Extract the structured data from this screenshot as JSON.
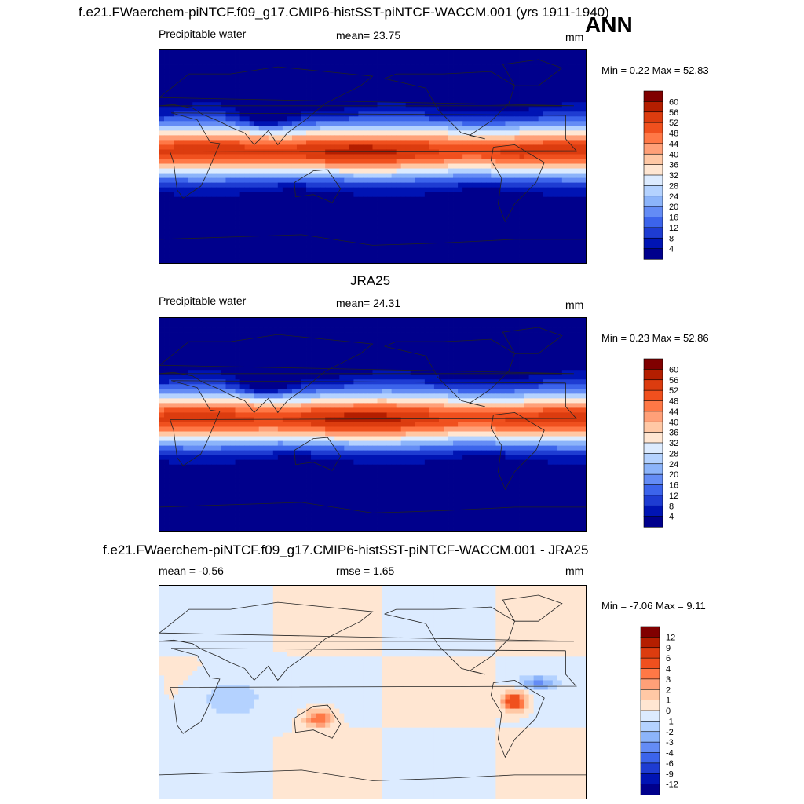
{
  "header": {
    "main_title": "f.e21.FWaerchem-piNTCF.f09_g17.CMIP6-histSST-piNTCF-WACCM.001 (yrs 1911-1940)",
    "season": "ANN"
  },
  "colors": {
    "diverging": [
      "#00008b",
      "#0019b4",
      "#1e46e6",
      "#3c6ef0",
      "#6496f0",
      "#96bef5",
      "#c8dcfa",
      "#ffe6d2",
      "#ffc8a5",
      "#ffa073",
      "#ff7846",
      "#f05020",
      "#d22d0a",
      "#a01000",
      "#800000"
    ],
    "coast": "#222222"
  },
  "panels": [
    {
      "id": "model",
      "subtitle": "",
      "left_label": "Precipitable water",
      "center_label": "mean=  23.75",
      "right_label": "mm",
      "minmax": "Min =   0.22 Max =  52.83",
      "colorbar": {
        "ticks": [
          "60",
          "56",
          "52",
          "48",
          "44",
          "40",
          "36",
          "32",
          "28",
          "24",
          "20",
          "16",
          "12",
          "8",
          "4"
        ],
        "colors": [
          "#800000",
          "#b41e00",
          "#dc3c0f",
          "#f0501e",
          "#ff7846",
          "#ffa078",
          "#ffc8a5",
          "#ffe6d2",
          "#dcebff",
          "#b4d2ff",
          "#8cb4fa",
          "#648cf5",
          "#3c64eb",
          "#1e3cd2",
          "#0014b4",
          "#00008c"
        ]
      }
    },
    {
      "id": "obs",
      "subtitle": "JRA25",
      "left_label": "Precipitable water",
      "center_label": "mean=  24.31",
      "right_label": "mm",
      "minmax": "Min =   0.23 Max =  52.86",
      "colorbar": {
        "ticks": [
          "60",
          "56",
          "52",
          "48",
          "44",
          "40",
          "36",
          "32",
          "28",
          "24",
          "20",
          "16",
          "12",
          "8",
          "4"
        ],
        "colors": [
          "#800000",
          "#b41e00",
          "#dc3c0f",
          "#f0501e",
          "#ff7846",
          "#ffa078",
          "#ffc8a5",
          "#ffe6d2",
          "#dcebff",
          "#b4d2ff",
          "#8cb4fa",
          "#648cf5",
          "#3c64eb",
          "#1e3cd2",
          "#0014b4",
          "#00008c"
        ]
      }
    },
    {
      "id": "diff",
      "subtitle": "f.e21.FWaerchem-piNTCF.f09_g17.CMIP6-histSST-piNTCF-WACCM.001 - JRA25",
      "left_label": "mean =  -0.56",
      "center_label": "rmse =   1.65",
      "right_label": "mm",
      "minmax": "Min =  -7.06 Max =   9.11",
      "colorbar": {
        "ticks": [
          "12",
          "9",
          "6",
          "4",
          "3",
          "2",
          "1",
          "0",
          "-1",
          "-2",
          "-3",
          "-4",
          "-6",
          "-9",
          "-12"
        ],
        "colors": [
          "#800000",
          "#b41e00",
          "#dc3c0f",
          "#f0501e",
          "#ff7846",
          "#ffa078",
          "#ffc8a5",
          "#ffe6d2",
          "#dcebff",
          "#b4d2ff",
          "#8cb4fa",
          "#648cf5",
          "#3c64eb",
          "#1e3cd2",
          "#0014b4",
          "#00008c"
        ]
      }
    }
  ]
}
